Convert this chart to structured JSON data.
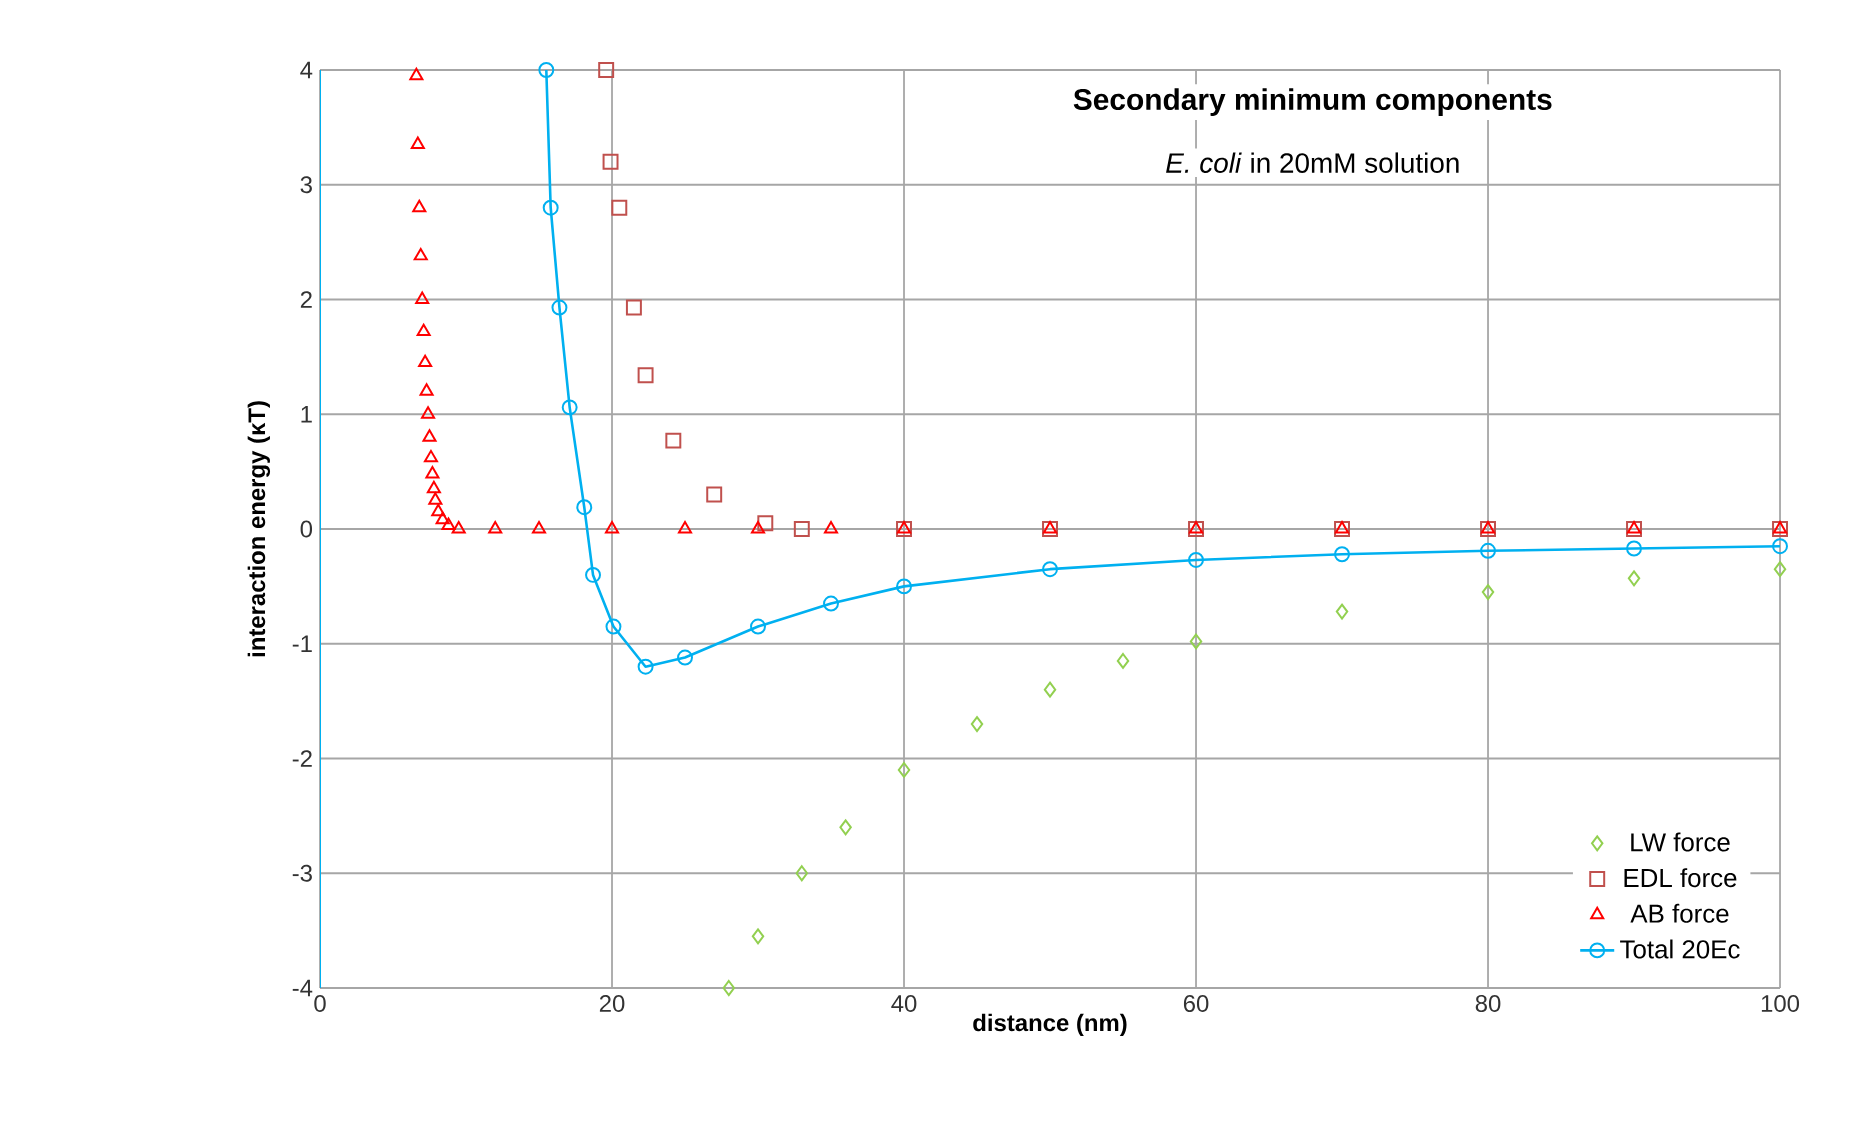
{
  "chart_data": {
    "type": "scatter",
    "title": "Secondary minimum components",
    "subtitle": "*E. coli* in 20mM solution",
    "xlabel": "distance (nm)",
    "ylabel": "interaction energy (κT)",
    "xlim": [
      0,
      100
    ],
    "ylim": [
      -4,
      4
    ],
    "xticks": [
      0,
      20,
      40,
      60,
      80,
      100
    ],
    "yticks": [
      -4,
      -3,
      -2,
      -1,
      0,
      1,
      2,
      3,
      4
    ],
    "grid": true,
    "legend": "bottom right",
    "series": [
      {
        "name": "LW force",
        "marker": "diamond",
        "color": "#92d050",
        "x": [
          28,
          30,
          33,
          36,
          40,
          45,
          50,
          55,
          60,
          70,
          80,
          90,
          100
        ],
        "values": [
          -4,
          -3.55,
          -3.0,
          -2.6,
          -2.1,
          -1.7,
          -1.4,
          -1.15,
          -0.98,
          -0.72,
          -0.55,
          -0.43,
          -0.35
        ]
      },
      {
        "name": "EDL force",
        "marker": "square",
        "color": "#c0504d",
        "x": [
          19.6,
          19.9,
          20.5,
          21.5,
          22.3,
          24.2,
          27,
          30.5,
          33,
          40,
          50,
          60,
          70,
          80,
          90,
          100
        ],
        "values": [
          4.0,
          3.2,
          2.8,
          1.93,
          1.34,
          0.77,
          0.3,
          0.05,
          0,
          0,
          0,
          0,
          0,
          0,
          0,
          0
        ]
      },
      {
        "name": "AB force",
        "marker": "triangle",
        "color": "#ff0000",
        "x": [
          6.6,
          6.7,
          6.8,
          6.9,
          7.0,
          7.1,
          7.2,
          7.3,
          7.4,
          7.5,
          7.6,
          7.7,
          7.8,
          7.9,
          8.1,
          8.4,
          8.8,
          9.5,
          12,
          15,
          20,
          25,
          30,
          35,
          40,
          50,
          60,
          70,
          80,
          90,
          100
        ],
        "values": [
          3.95,
          3.35,
          2.8,
          2.38,
          2.0,
          1.72,
          1.45,
          1.2,
          1.0,
          0.8,
          0.62,
          0.48,
          0.35,
          0.25,
          0.15,
          0.08,
          0.03,
          0,
          0,
          0,
          0,
          0,
          0,
          0,
          0,
          0,
          0,
          0,
          0,
          0,
          0
        ]
      },
      {
        "name": "Total 20Ec",
        "type": "line",
        "marker": "circle",
        "color": "#00b0f0",
        "x": [
          15.5,
          15.8,
          16.4,
          17.1,
          18.1,
          18.7,
          20.1,
          22.3,
          25,
          30,
          35,
          40,
          50,
          60,
          70,
          80,
          90,
          100
        ],
        "values": [
          4.0,
          2.8,
          1.93,
          1.06,
          0.19,
          -0.4,
          -0.85,
          -1.2,
          -1.12,
          -0.85,
          -0.65,
          -0.5,
          -0.35,
          -0.27,
          -0.22,
          -0.19,
          -0.17,
          -0.15
        ]
      }
    ]
  }
}
